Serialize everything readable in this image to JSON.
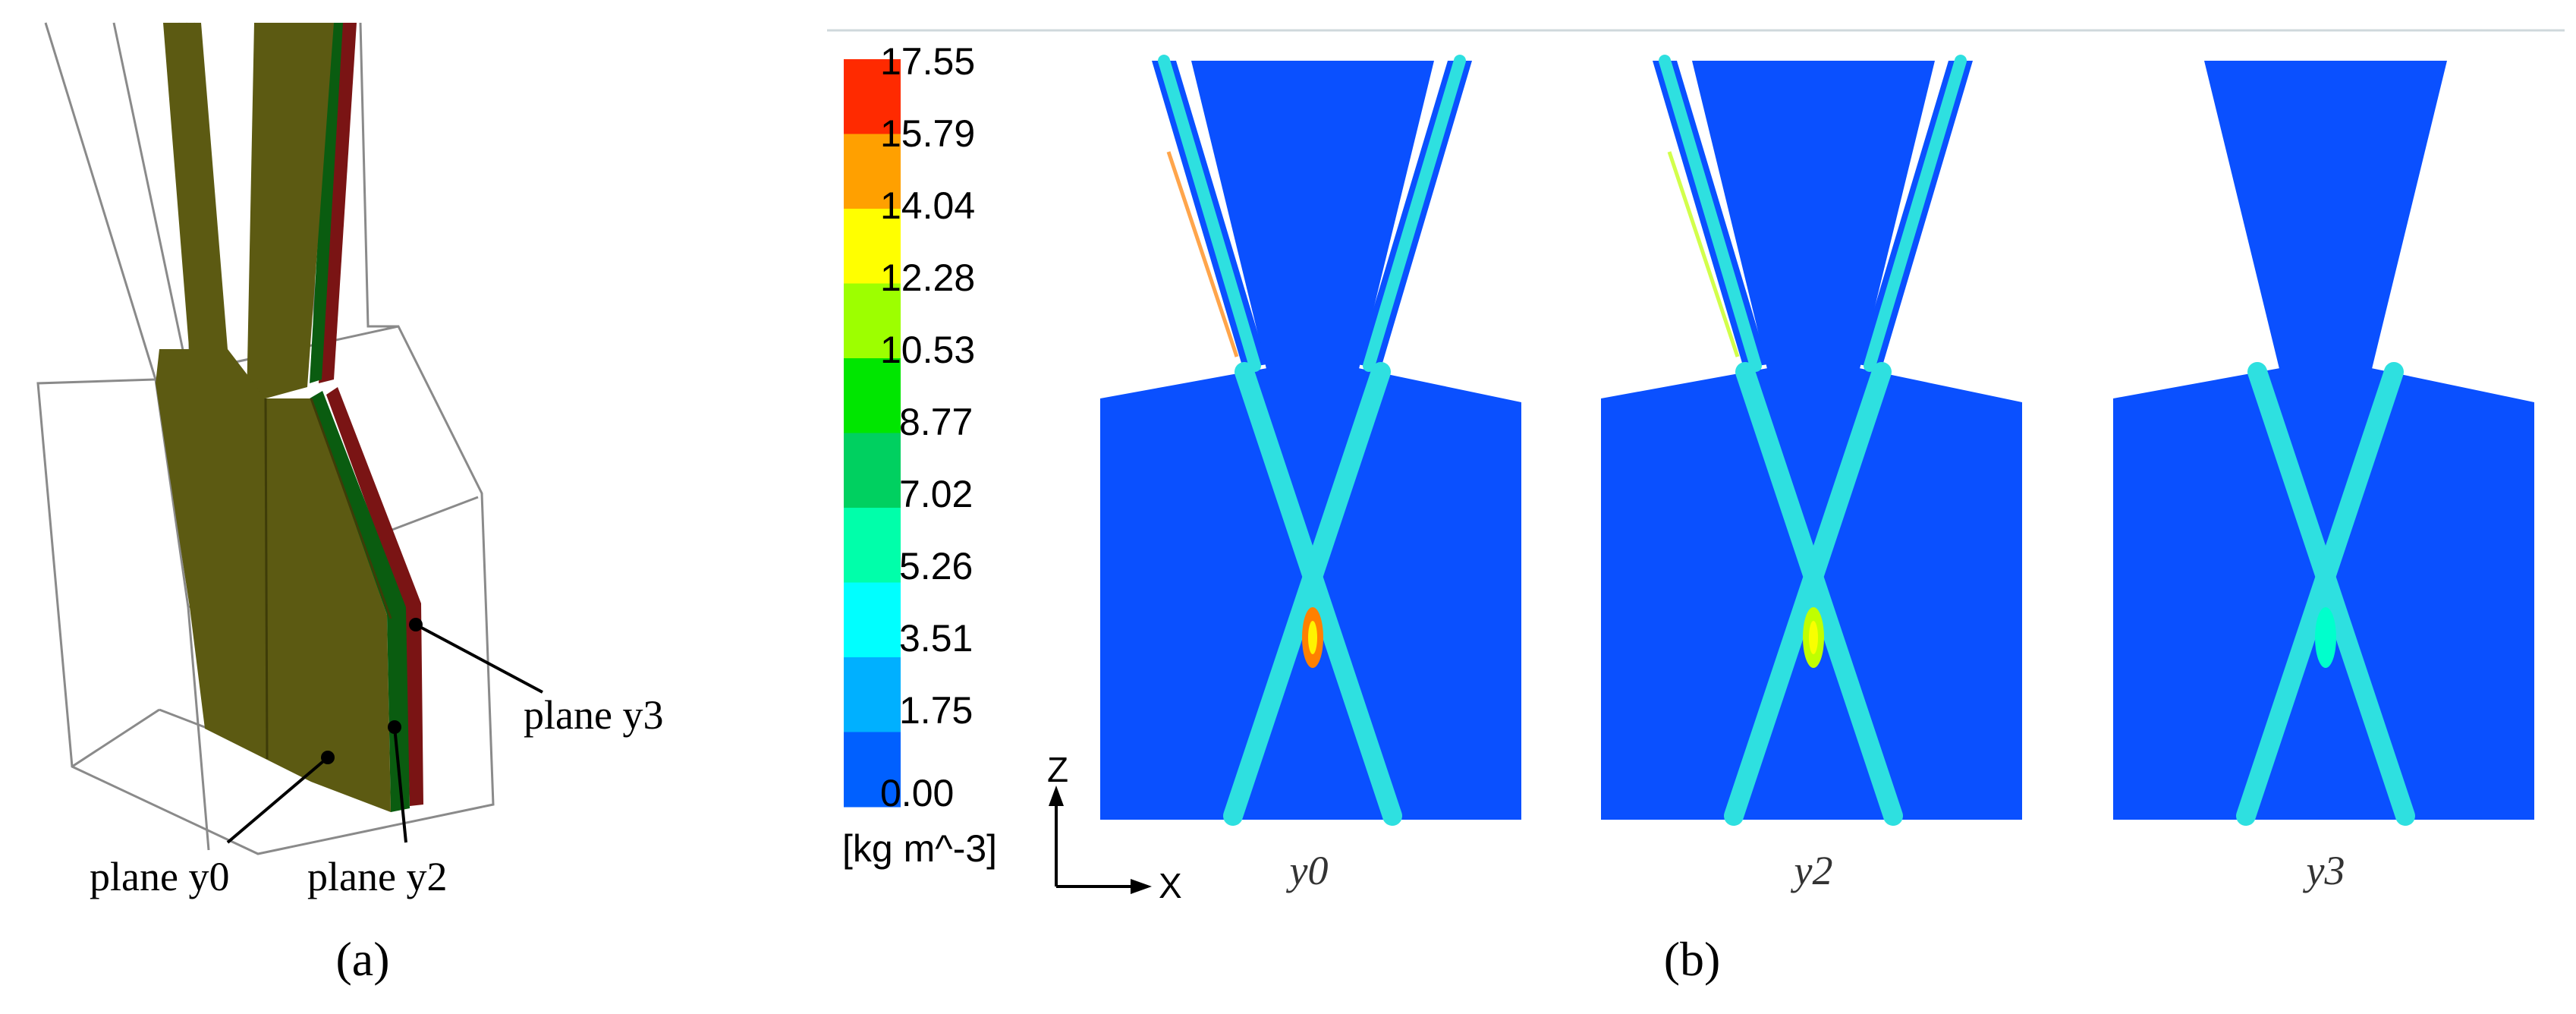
{
  "panel_a": {
    "label": "(a)",
    "planes": [
      {
        "id": "y0",
        "label": "plane y0",
        "color": "#5c5a12"
      },
      {
        "id": "y2",
        "label": "plane y2",
        "color": "#0a5c10"
      },
      {
        "id": "y3",
        "label": "plane y3",
        "color": "#7a1414"
      }
    ]
  },
  "panel_b": {
    "label": "(b)",
    "colorbar": {
      "ticks": [
        "17.55",
        "15.79",
        "14.04",
        "12.28",
        "10.53",
        "8.77",
        "7.02",
        "5.26",
        "3.51",
        "1.75",
        "0.00"
      ],
      "unit": "[kg m^-3]",
      "colors_top_to_bottom": [
        "#ff2a00",
        "#ffa000",
        "#ffff00",
        "#9dff00",
        "#00e600",
        "#00d060",
        "#00ffaa",
        "#00ffff",
        "#00b0ff",
        "#0060ff"
      ]
    },
    "axes": {
      "z": "Z",
      "x": "X"
    },
    "contours": [
      {
        "id": "y0",
        "label": "y0",
        "slots": true,
        "peak_color": "#ff8000"
      },
      {
        "id": "y2",
        "label": "y2",
        "slots": true,
        "peak_color": "#c0ff00"
      },
      {
        "id": "y3",
        "label": "y3",
        "slots": false,
        "peak_color": "#00ffcc"
      }
    ],
    "background_color": "#0a50ff",
    "jet_color": "#2ee0e0"
  }
}
